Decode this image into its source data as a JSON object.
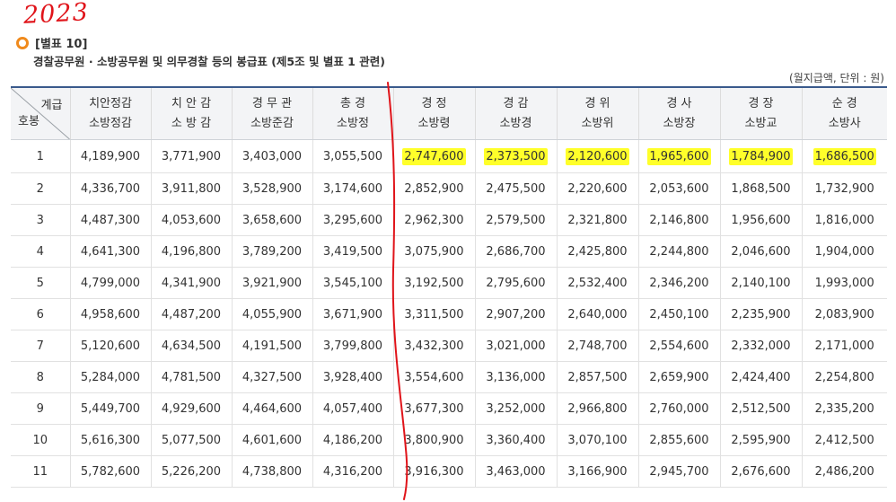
{
  "handwritten_note": "2023",
  "section_title": "[별표 10]",
  "table_caption": "경찰공무원 · 소방공무원 및 의무경찰 등의 봉급표 (제5조 및 별표 1 관련)",
  "unit_note": "(월지급액, 단위 : 원)",
  "header": {
    "corner_grade": "계급",
    "corner_step": "호봉",
    "columns": [
      {
        "line1": "치안정감",
        "line2": "소방정감"
      },
      {
        "line1": "치 안 감",
        "line2": "소 방 감"
      },
      {
        "line1": "경 무 관",
        "line2": "소방준감"
      },
      {
        "line1": "총 경",
        "line2": "소방정"
      },
      {
        "line1": "경 정",
        "line2": "소방령"
      },
      {
        "line1": "경 감",
        "line2": "소방경"
      },
      {
        "line1": "경 위",
        "line2": "소방위"
      },
      {
        "line1": "경 사",
        "line2": "소방장"
      },
      {
        "line1": "경 장",
        "line2": "소방교"
      },
      {
        "line1": "순 경",
        "line2": "소방사"
      }
    ]
  },
  "rows": [
    {
      "step": "1",
      "values": [
        "4,189,900",
        "3,771,900",
        "3,403,000",
        "3,055,500",
        "2,747,600",
        "2,373,500",
        "2,120,600",
        "1,965,600",
        "1,784,900",
        "1,686,500"
      ]
    },
    {
      "step": "2",
      "values": [
        "4,336,700",
        "3,911,800",
        "3,528,900",
        "3,174,600",
        "2,852,900",
        "2,475,500",
        "2,220,600",
        "2,053,600",
        "1,868,500",
        "1,732,900"
      ]
    },
    {
      "step": "3",
      "values": [
        "4,487,300",
        "4,053,600",
        "3,658,600",
        "3,295,600",
        "2,962,300",
        "2,579,500",
        "2,321,800",
        "2,146,800",
        "1,956,600",
        "1,816,000"
      ]
    },
    {
      "step": "4",
      "values": [
        "4,641,300",
        "4,196,800",
        "3,789,200",
        "3,419,500",
        "3,075,900",
        "2,686,700",
        "2,425,800",
        "2,244,800",
        "2,046,600",
        "1,904,000"
      ]
    },
    {
      "step": "5",
      "values": [
        "4,799,000",
        "4,341,900",
        "3,921,900",
        "3,545,100",
        "3,192,500",
        "2,795,600",
        "2,532,400",
        "2,346,200",
        "2,140,100",
        "1,993,000"
      ]
    },
    {
      "step": "6",
      "values": [
        "4,958,600",
        "4,487,200",
        "4,055,900",
        "3,671,900",
        "3,311,500",
        "2,907,200",
        "2,640,000",
        "2,450,100",
        "2,235,900",
        "2,083,900"
      ]
    },
    {
      "step": "7",
      "values": [
        "5,120,600",
        "4,634,500",
        "4,191,500",
        "3,799,800",
        "3,432,300",
        "3,021,000",
        "2,748,700",
        "2,554,600",
        "2,332,000",
        "2,171,000"
      ]
    },
    {
      "step": "8",
      "values": [
        "5,284,000",
        "4,781,500",
        "4,327,500",
        "3,928,400",
        "3,554,600",
        "3,136,000",
        "2,857,500",
        "2,659,900",
        "2,424,400",
        "2,254,800"
      ]
    },
    {
      "step": "9",
      "values": [
        "5,449,700",
        "4,929,600",
        "4,464,600",
        "4,057,400",
        "3,677,300",
        "3,252,000",
        "2,966,800",
        "2,760,000",
        "2,512,500",
        "2,335,200"
      ]
    },
    {
      "step": "10",
      "values": [
        "5,616,300",
        "5,077,500",
        "4,601,600",
        "4,186,200",
        "3,800,900",
        "3,360,400",
        "3,070,100",
        "2,855,600",
        "2,595,900",
        "2,412,500"
      ]
    },
    {
      "step": "11",
      "values": [
        "5,782,600",
        "5,226,200",
        "4,738,800",
        "4,316,200",
        "3,916,300",
        "3,463,000",
        "3,166,900",
        "2,945,700",
        "2,676,600",
        "2,486,200"
      ]
    }
  ],
  "highlight": {
    "row_index": 0,
    "from_column": 4,
    "color": "#ffff2a"
  },
  "annotation_color": "#e0141a",
  "accent_color": "#f08a1c"
}
